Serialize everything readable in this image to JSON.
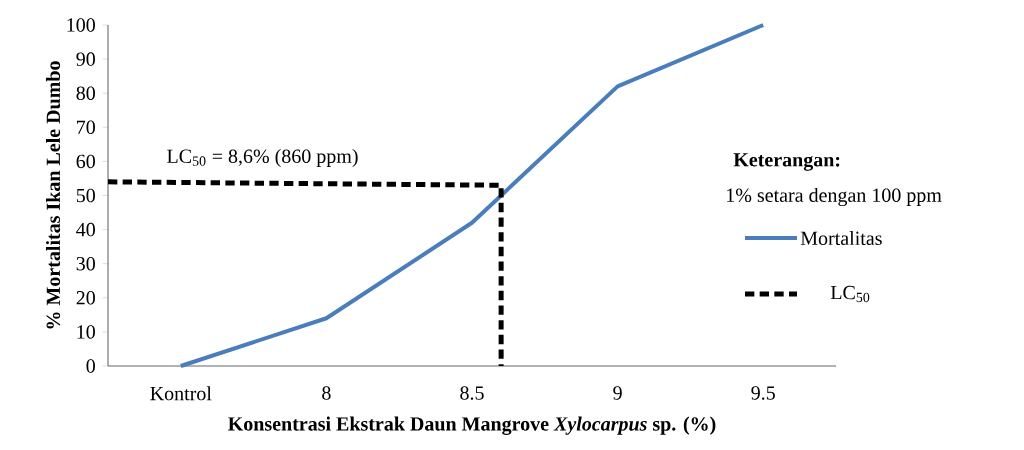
{
  "chart_data": {
    "type": "line",
    "xlabel": "Konsentrasi Ekstrak Daun Mangrove *Xylocarpus* sp. (%)",
    "ylabel": "% Mortalitas Ikan Lele Dumbo",
    "legend_title": "Keterangan:",
    "xlim": [
      7.25,
      9.75
    ],
    "xticks": [
      {
        "value": 7.5,
        "label": "Kontrol"
      },
      8,
      8.5,
      9,
      9.5
    ],
    "ylim": [
      0,
      100
    ],
    "yticks": [
      0,
      10,
      20,
      30,
      40,
      50,
      60,
      70,
      80,
      90,
      100
    ],
    "series": [
      {
        "name": "Mortalitas",
        "color": "#4a7ebb",
        "x": [
          7.5,
          8,
          8.5,
          9,
          9.5
        ],
        "values": [
          0,
          14,
          42,
          82,
          100
        ],
        "line_style": "solid"
      },
      {
        "name": "LC$_{50}$",
        "color": "#000000",
        "x": [
          7.25,
          8.6,
          8.6
        ],
        "values": [
          54,
          53,
          0
        ],
        "line_style": "dashed"
      }
    ],
    "annotations": [
      "LC$_{50}$  = 8,6% (860 ppm)",
      "1% setara dengan 100 ppm"
    ],
    "legend": "right",
    "grid": false,
    "marker": "none"
  }
}
